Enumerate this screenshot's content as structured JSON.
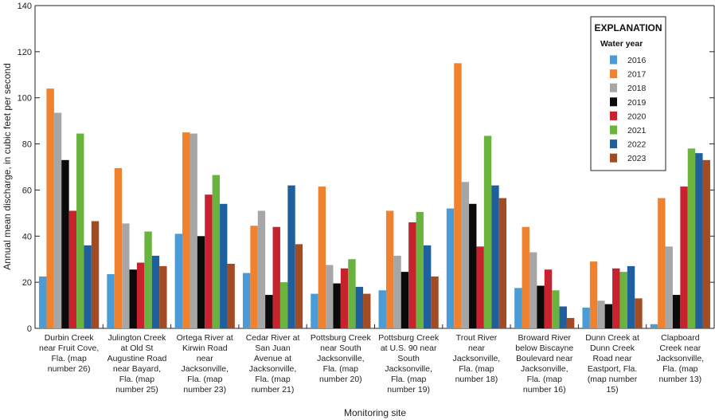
{
  "chart_data": {
    "type": "bar",
    "xlabel": "Monitoring site",
    "ylabel": "Annual mean discharge, in cubic feet per second",
    "ylim": [
      0,
      140
    ],
    "yticks": [
      0,
      20,
      40,
      60,
      80,
      100,
      120,
      140
    ],
    "grid": false,
    "legend": {
      "title": "EXPLANATION",
      "subtitle": "Water year",
      "placement": "top-right"
    },
    "categories": [
      [
        "Durbin Creek",
        "near Fruit Cove,",
        "Fla. (map",
        "number 26)"
      ],
      [
        "Julington Creek",
        "at Old St",
        "Augustine Road",
        "near Bayard,",
        "Fla. (map",
        "number 25)"
      ],
      [
        "Ortega River at",
        "Kirwin Road",
        "near",
        "Jacksonville,",
        "Fla. (map",
        "number 23)"
      ],
      [
        "Cedar River at",
        "San Juan",
        "Avenue at",
        "Jacksonville,",
        "Fla. (map",
        "number 21)"
      ],
      [
        "Pottsburg Creek",
        "near South",
        "Jacksonville,",
        "Fla. (map",
        "number 20)"
      ],
      [
        "Pottsburg Creek",
        "at U.S. 90 near",
        "South",
        "Jacksonville,",
        "Fla. (map",
        "number 19)"
      ],
      [
        "Trout River",
        "near",
        "Jacksonville,",
        "Fla. (map",
        "number 18)"
      ],
      [
        "Broward River",
        "below Biscayne",
        "Boulevard near",
        "Jacksonville,",
        "Fla. (map",
        "number 16)"
      ],
      [
        "Dunn Creek at",
        "Dunn Creek",
        "Road near",
        "Eastport, Fla.",
        "(map number",
        "15)"
      ],
      [
        "Clapboard",
        "Creek near",
        "Jacksonville,",
        "Fla. (map",
        "number 13)"
      ]
    ],
    "series": [
      {
        "name": "2016",
        "color": "#4a9bd6",
        "values": [
          22.5,
          23.5,
          41,
          24,
          15,
          16.5,
          52,
          17.5,
          9,
          1.8
        ]
      },
      {
        "name": "2017",
        "color": "#f0812f",
        "values": [
          104,
          69.5,
          85,
          44.5,
          61.5,
          51,
          115,
          44,
          29,
          56.5
        ]
      },
      {
        "name": "2018",
        "color": "#a6a6a6",
        "values": [
          93.5,
          45.5,
          84.5,
          51,
          27.5,
          31.5,
          63.5,
          33,
          12,
          35.5
        ]
      },
      {
        "name": "2019",
        "color": "#0a0a0a",
        "values": [
          73,
          25.5,
          40,
          14.5,
          19.5,
          24.5,
          54,
          18.5,
          10.5,
          14.5
        ]
      },
      {
        "name": "2020",
        "color": "#c8222f",
        "values": [
          51,
          28.5,
          58,
          44,
          26,
          46,
          35.5,
          25.5,
          26,
          61.5
        ]
      },
      {
        "name": "2021",
        "color": "#6bb33f",
        "values": [
          84.5,
          42,
          66.5,
          20,
          30,
          50.5,
          83.5,
          16.5,
          24.5,
          78
        ]
      },
      {
        "name": "2022",
        "color": "#1f5f9e",
        "values": [
          36,
          31.5,
          54,
          62,
          18,
          36,
          62,
          9.5,
          27,
          76
        ]
      },
      {
        "name": "2023",
        "color": "#a34b22",
        "values": [
          46.5,
          27,
          28,
          36.5,
          15,
          22.5,
          56.5,
          4.5,
          13,
          73
        ]
      }
    ]
  }
}
